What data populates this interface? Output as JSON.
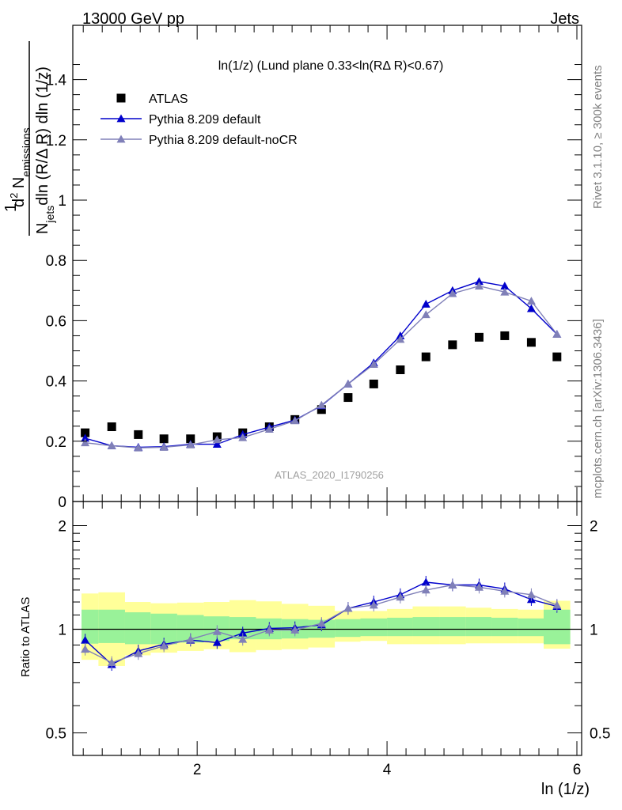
{
  "header": {
    "left": "13000 GeV pp",
    "right": "Jets"
  },
  "side_labels": {
    "rivet": "Rivet 3.1.10, ≥ 300k events",
    "mcplots": "mcplots.cern.ch [arXiv:1306.3436]"
  },
  "chart_data": [
    {
      "type": "scatter",
      "panel": "main",
      "title": "ln(1/z) (Lund plane 0.33<ln(RΔ R)<0.67)",
      "ylabel": "1/N_jets d²N_emissions / dln(R/ΔR) dln(1/z)",
      "xlabel": "ln (1/z)",
      "watermark": "ATLAS_2020_I1790256",
      "xlim": [
        0.69,
        6.05
      ],
      "ylim": [
        0,
        1.58
      ],
      "yticks": [
        "0",
        "0.2",
        "0.4",
        "0.6",
        "0.8",
        "1",
        "1.2",
        "1.4"
      ],
      "legend_position": "top-left",
      "x": [
        0.82,
        1.1,
        1.38,
        1.65,
        1.93,
        2.21,
        2.48,
        2.76,
        3.03,
        3.31,
        3.59,
        3.86,
        4.14,
        4.41,
        4.69,
        4.97,
        5.24,
        5.52,
        5.79
      ],
      "series": [
        {
          "name": "ATLAS",
          "marker": "square",
          "color": "#000000",
          "values": [
            0.228,
            0.248,
            0.222,
            0.208,
            0.208,
            0.215,
            0.228,
            0.248,
            0.272,
            0.305,
            0.345,
            0.39,
            0.437,
            0.48,
            0.52,
            0.545,
            0.55,
            0.528,
            0.48
          ]
        },
        {
          "name": "Pythia 8.209 default",
          "marker": "triangle",
          "color": "#0000cc",
          "values": [
            0.21,
            0.185,
            0.18,
            0.182,
            0.19,
            0.19,
            0.222,
            0.247,
            0.27,
            0.318,
            0.39,
            0.46,
            0.55,
            0.655,
            0.7,
            0.73,
            0.715,
            0.64,
            0.555
          ]
        },
        {
          "name": "Pythia 8.209 default-noCR",
          "marker": "triangle",
          "color": "#8080b8",
          "values": [
            0.195,
            0.185,
            0.178,
            0.18,
            0.188,
            0.205,
            0.212,
            0.24,
            0.268,
            0.32,
            0.39,
            0.455,
            0.538,
            0.62,
            0.69,
            0.715,
            0.695,
            0.665,
            0.555
          ]
        }
      ]
    },
    {
      "type": "line",
      "panel": "ratio",
      "ylabel": "Ratio to ATLAS",
      "xlabel": "ln (1/z)",
      "xlim": [
        0.69,
        6.05
      ],
      "ylim": [
        0.43,
        2.35
      ],
      "log_y": true,
      "xticks": [
        "2",
        "4",
        "6"
      ],
      "yticks": [
        "0.5",
        "1",
        "2"
      ],
      "x": [
        0.82,
        1.1,
        1.38,
        1.65,
        1.93,
        2.21,
        2.48,
        2.76,
        3.03,
        3.31,
        3.59,
        3.86,
        4.14,
        4.41,
        4.69,
        4.97,
        5.24,
        5.52,
        5.79
      ],
      "bin_edges": [
        0.69,
        0.96,
        1.24,
        1.51,
        1.79,
        2.07,
        2.34,
        2.62,
        2.89,
        3.17,
        3.45,
        3.72,
        4.0,
        4.27,
        4.55,
        4.83,
        5.1,
        5.38,
        5.65,
        5.93
      ],
      "bands": {
        "inner_color": "#99f299",
        "outer_color": "#ffff99",
        "inner_low": [
          0.908,
          0.912,
          0.905,
          0.905,
          0.915,
          0.925,
          0.935,
          0.935,
          0.94,
          0.945,
          0.95,
          0.955,
          0.955,
          0.955,
          0.955,
          0.955,
          0.955,
          0.955,
          0.905
        ],
        "inner_high": [
          1.14,
          1.14,
          1.12,
          1.11,
          1.1,
          1.09,
          1.085,
          1.075,
          1.07,
          1.065,
          1.07,
          1.075,
          1.08,
          1.085,
          1.085,
          1.085,
          1.08,
          1.075,
          1.14
        ],
        "outer_low": [
          0.815,
          0.782,
          0.84,
          0.855,
          0.865,
          0.875,
          0.858,
          0.87,
          0.875,
          0.885,
          0.92,
          0.925,
          0.905,
          0.905,
          0.905,
          0.91,
          0.91,
          0.91,
          0.878
        ],
        "outer_high": [
          1.27,
          1.28,
          1.2,
          1.19,
          1.195,
          1.2,
          1.215,
          1.205,
          1.185,
          1.17,
          1.13,
          1.13,
          1.145,
          1.165,
          1.165,
          1.155,
          1.145,
          1.14,
          1.21
        ]
      },
      "series": [
        {
          "name": "Pythia 8.209 default",
          "marker": "triangle",
          "color": "#0000cc",
          "values": [
            0.93,
            0.79,
            0.865,
            0.905,
            0.93,
            0.915,
            0.975,
            1.005,
            1.01,
            1.03,
            1.15,
            1.2,
            1.26,
            1.37,
            1.345,
            1.345,
            1.31,
            1.22,
            1.165
          ]
        },
        {
          "name": "Pythia 8.209 default-noCR",
          "marker": "triangle",
          "color": "#8080b8",
          "values": [
            0.875,
            0.8,
            0.85,
            0.895,
            0.935,
            0.985,
            0.935,
            0.995,
            0.995,
            1.04,
            1.15,
            1.175,
            1.24,
            1.3,
            1.345,
            1.325,
            1.29,
            1.26,
            1.175
          ]
        }
      ]
    }
  ]
}
